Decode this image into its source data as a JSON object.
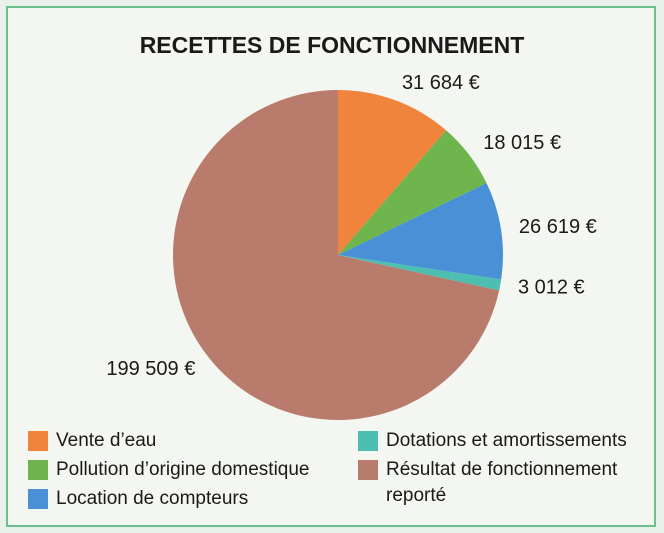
{
  "chart_data": {
    "type": "pie",
    "title": "RECETTES DE FONCTIONNEMENT",
    "categories": [
      "Vente d’eau",
      "Pollution d’origine domestique",
      "Location de compteurs",
      "Dotations et amortissements",
      "Résultat de fonctionnement reporté"
    ],
    "values": [
      31684,
      18015,
      26619,
      3012,
      199509
    ],
    "value_labels": [
      "31 684 €",
      "18 015 €",
      "26 619 €",
      "3 012 €",
      "199 509 €"
    ],
    "colors": [
      "#f0843c",
      "#6db54c",
      "#4a90d6",
      "#4cbfb0",
      "#b97b6c"
    ],
    "legend": "bottom"
  }
}
